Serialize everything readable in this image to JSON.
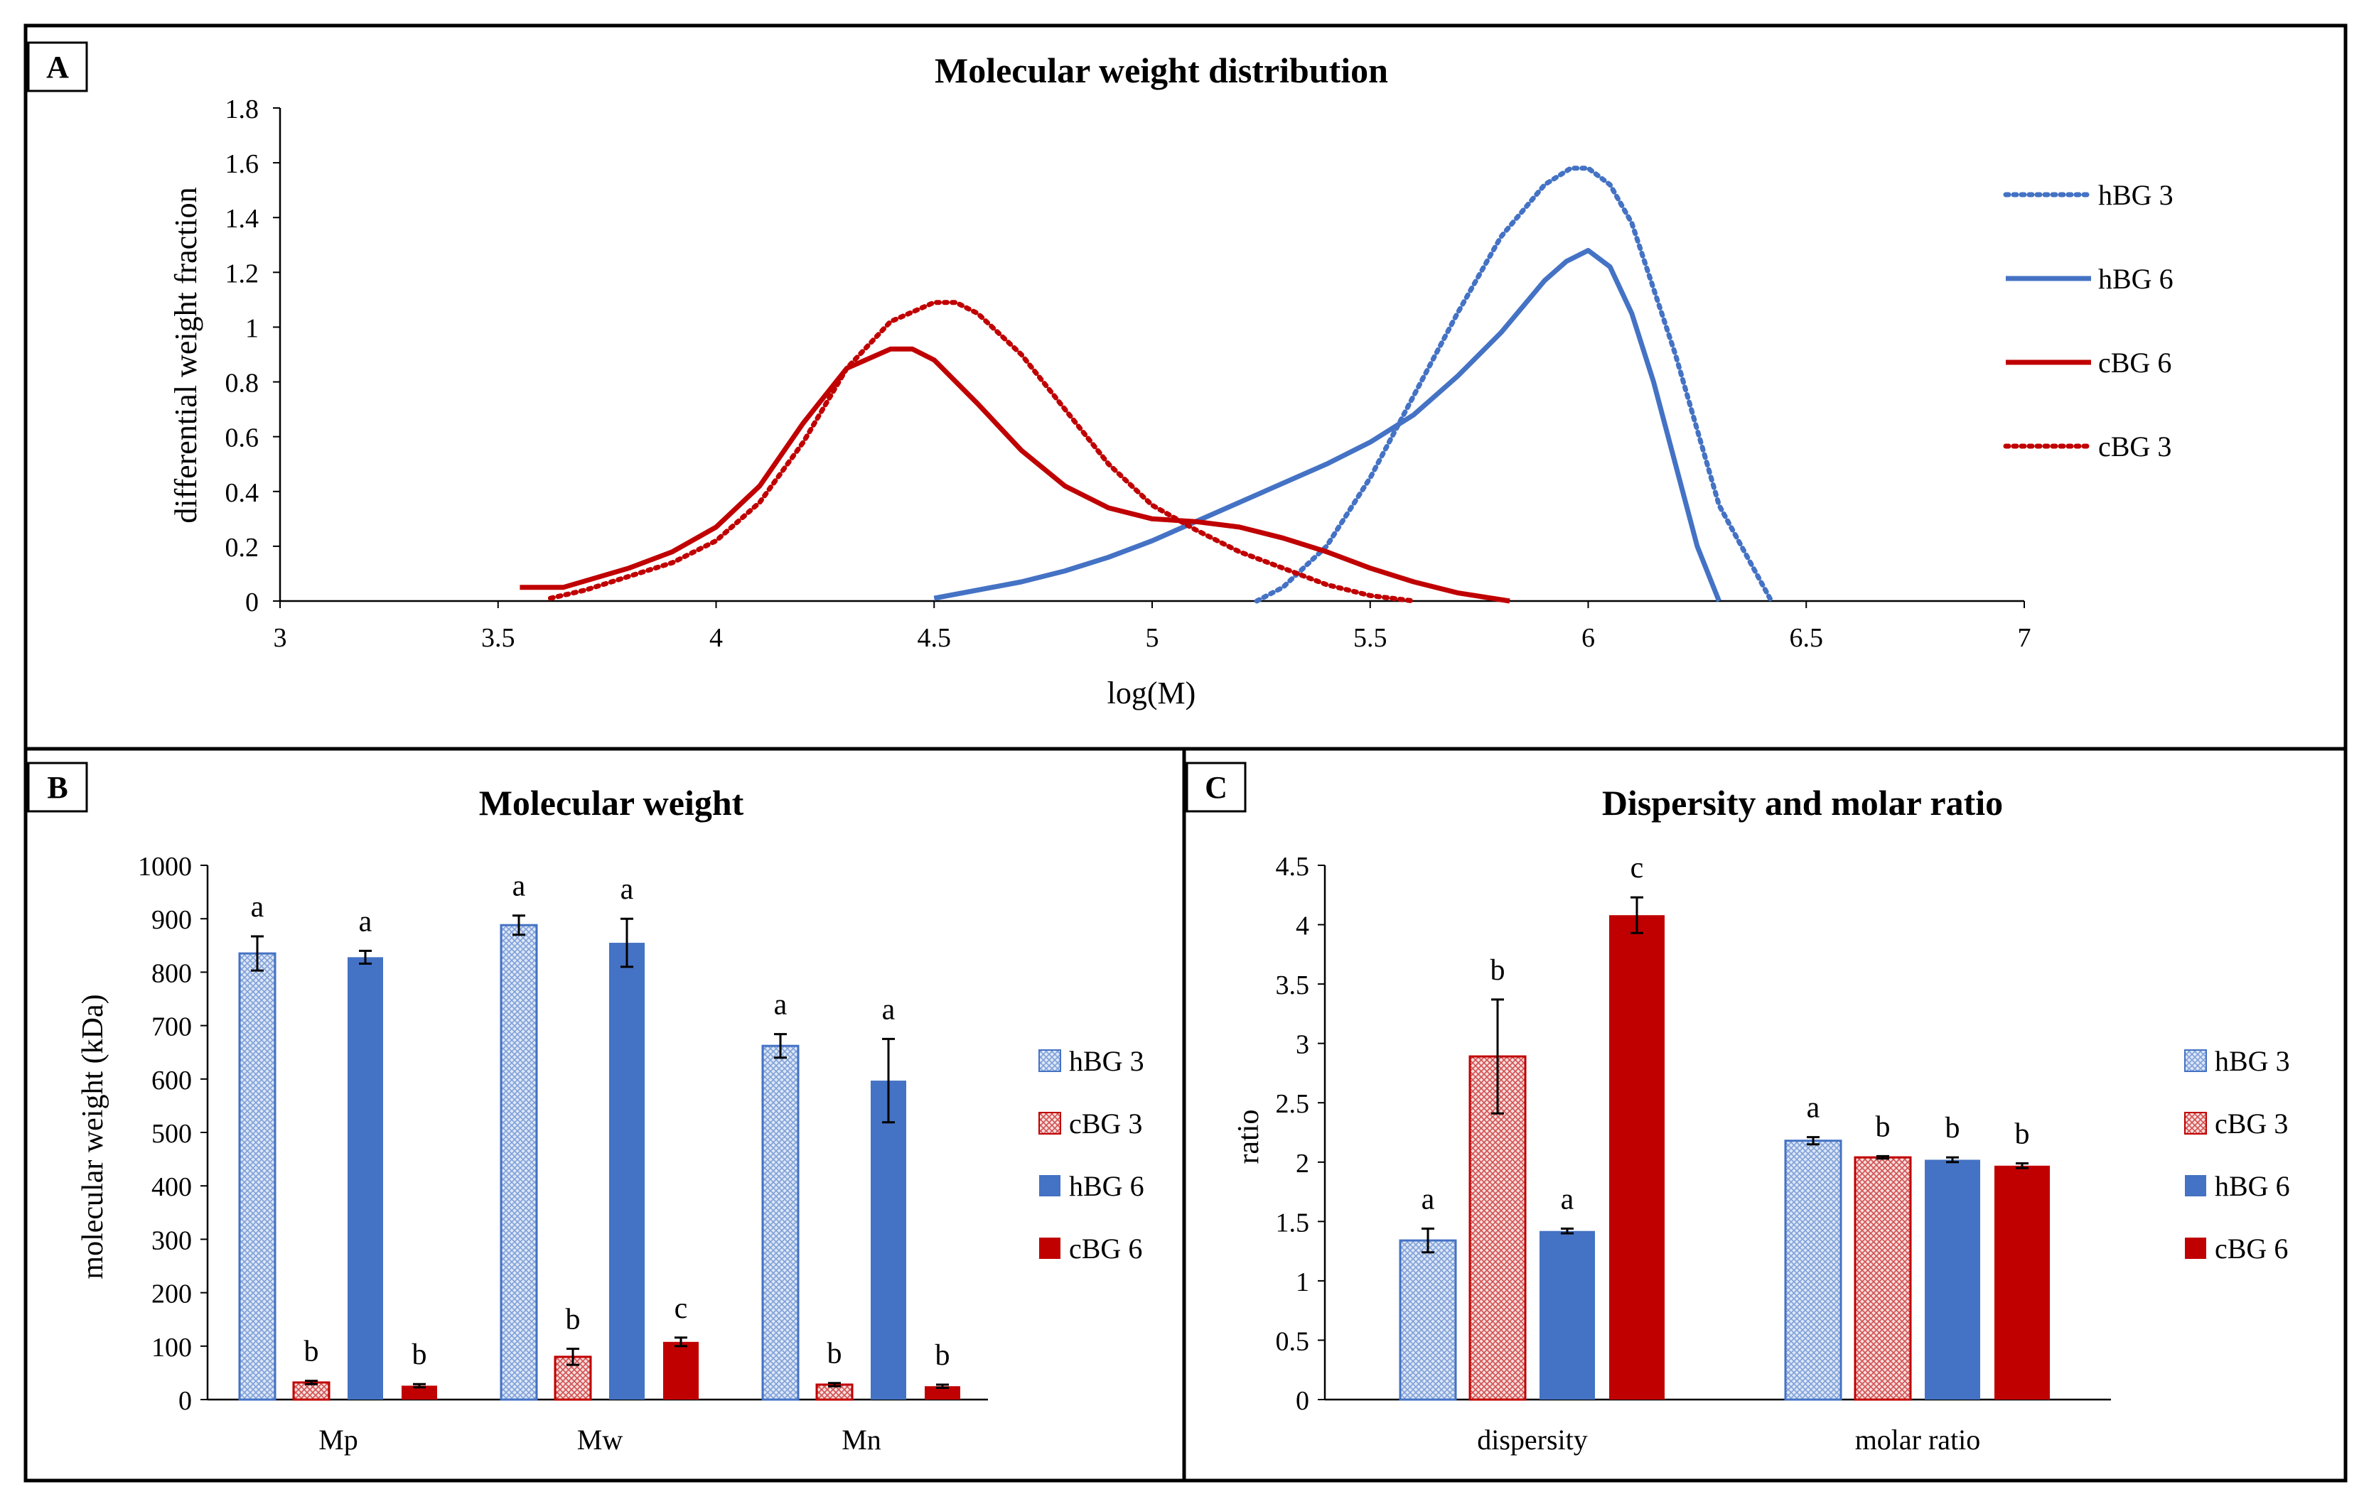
{
  "chart_data": [
    {
      "panel": "A",
      "type": "line",
      "title": "Molecular weight distribution",
      "xlabel": "log(M)",
      "ylabel": "differential weight fraction",
      "xlim": [
        3,
        7
      ],
      "ylim": [
        0,
        1.8
      ],
      "x_ticks": [
        "3",
        "3.5",
        "4",
        "4.5",
        "5",
        "5.5",
        "6",
        "6.5",
        "7"
      ],
      "y_ticks": [
        "0",
        "0.2",
        "0.4",
        "0.6",
        "0.8",
        "1",
        "1.2",
        "1.4",
        "1.6",
        "1.8"
      ],
      "legend_position": "right",
      "series": [
        {
          "name": "hBG 3",
          "color": "#4472c4",
          "dash": "dotted",
          "x": [
            5.24,
            5.3,
            5.4,
            5.5,
            5.6,
            5.7,
            5.8,
            5.9,
            5.96,
            6.0,
            6.05,
            6.1,
            6.2,
            6.3,
            6.42
          ],
          "y": [
            0.0,
            0.05,
            0.2,
            0.45,
            0.75,
            1.05,
            1.33,
            1.52,
            1.58,
            1.58,
            1.52,
            1.38,
            0.9,
            0.35,
            0.0
          ]
        },
        {
          "name": "hBG 6",
          "color": "#4472c4",
          "dash": "solid",
          "x": [
            4.5,
            4.6,
            4.7,
            4.8,
            4.9,
            5.0,
            5.1,
            5.2,
            5.3,
            5.4,
            5.5,
            5.6,
            5.7,
            5.8,
            5.9,
            5.95,
            6.0,
            6.05,
            6.1,
            6.15,
            6.2,
            6.25,
            6.3
          ],
          "y": [
            0.01,
            0.04,
            0.07,
            0.11,
            0.16,
            0.22,
            0.29,
            0.36,
            0.43,
            0.5,
            0.58,
            0.68,
            0.82,
            0.98,
            1.17,
            1.24,
            1.28,
            1.22,
            1.05,
            0.8,
            0.5,
            0.2,
            0.0
          ]
        },
        {
          "name": "cBG 6",
          "color": "#c00000",
          "dash": "solid",
          "x": [
            3.55,
            3.65,
            3.8,
            3.9,
            4.0,
            4.1,
            4.2,
            4.3,
            4.4,
            4.45,
            4.5,
            4.6,
            4.7,
            4.8,
            4.9,
            5.0,
            5.1,
            5.2,
            5.3,
            5.4,
            5.5,
            5.6,
            5.7,
            5.82
          ],
          "y": [
            0.05,
            0.05,
            0.12,
            0.18,
            0.27,
            0.42,
            0.65,
            0.85,
            0.92,
            0.92,
            0.88,
            0.72,
            0.55,
            0.42,
            0.34,
            0.3,
            0.29,
            0.27,
            0.23,
            0.18,
            0.12,
            0.07,
            0.03,
            0.0
          ]
        },
        {
          "name": "cBG 3",
          "color": "#c00000",
          "dash": "dotted",
          "x": [
            3.62,
            3.7,
            3.8,
            3.9,
            4.0,
            4.1,
            4.2,
            4.3,
            4.4,
            4.5,
            4.55,
            4.6,
            4.7,
            4.8,
            4.9,
            5.0,
            5.1,
            5.2,
            5.3,
            5.4,
            5.5,
            5.6
          ],
          "y": [
            0.01,
            0.04,
            0.09,
            0.14,
            0.22,
            0.36,
            0.58,
            0.85,
            1.02,
            1.09,
            1.09,
            1.05,
            0.9,
            0.7,
            0.5,
            0.35,
            0.26,
            0.18,
            0.12,
            0.06,
            0.02,
            0.0
          ]
        }
      ]
    },
    {
      "panel": "B",
      "type": "bar",
      "title": "Molecular weight",
      "xlabel": "",
      "ylabel": "molecular weight (kDa)",
      "ylim": [
        0,
        1000
      ],
      "y_ticks": [
        "0",
        "100",
        "200",
        "300",
        "400",
        "500",
        "600",
        "700",
        "800",
        "900",
        "1000"
      ],
      "categories": [
        "Mp",
        "Mw",
        "Mn"
      ],
      "legend_position": "right",
      "series": [
        {
          "name": "hBG 3",
          "color": "#4472c4",
          "pattern": "hatch",
          "values": [
            835,
            888,
            662
          ],
          "errors": [
            32,
            18,
            22
          ],
          "letters": [
            "a",
            "a",
            "a"
          ]
        },
        {
          "name": "cBG 3",
          "color": "#c00000",
          "pattern": "hatch",
          "values": [
            32,
            80,
            28
          ],
          "errors": [
            3,
            15,
            3
          ],
          "letters": [
            "b",
            "b",
            "b"
          ]
        },
        {
          "name": "hBG 6",
          "color": "#4472c4",
          "pattern": "solid",
          "values": [
            828,
            855,
            597
          ],
          "errors": [
            12,
            45,
            78
          ],
          "letters": [
            "a",
            "a",
            "a"
          ]
        },
        {
          "name": "cBG 6",
          "color": "#c00000",
          "pattern": "solid",
          "values": [
            26,
            108,
            25
          ],
          "errors": [
            3,
            8,
            3
          ],
          "letters": [
            "b",
            "c",
            "b"
          ]
        }
      ]
    },
    {
      "panel": "C",
      "type": "bar",
      "title": "Dispersity and molar ratio",
      "xlabel": "",
      "ylabel": "ratio",
      "ylim": [
        0,
        4.5
      ],
      "y_ticks": [
        "0",
        "0.5",
        "1",
        "1.5",
        "2",
        "2.5",
        "3",
        "3.5",
        "4",
        "4.5"
      ],
      "categories": [
        "dispersity",
        "molar ratio"
      ],
      "legend_position": "right",
      "series": [
        {
          "name": "hBG 3",
          "color": "#4472c4",
          "pattern": "hatch",
          "values": [
            1.34,
            2.18
          ],
          "errors": [
            0.1,
            0.03
          ],
          "letters": [
            "a",
            "a"
          ]
        },
        {
          "name": "cBG 3",
          "color": "#c00000",
          "pattern": "hatch",
          "values": [
            2.89,
            2.04
          ],
          "errors": [
            0.48,
            0.01
          ],
          "letters": [
            "b",
            "b"
          ]
        },
        {
          "name": "hBG 6",
          "color": "#4472c4",
          "pattern": "solid",
          "values": [
            1.42,
            2.02
          ],
          "errors": [
            0.02,
            0.02
          ],
          "letters": [
            "a",
            "b"
          ]
        },
        {
          "name": "cBG 6",
          "color": "#c00000",
          "pattern": "solid",
          "values": [
            4.08,
            1.97
          ],
          "errors": [
            0.15,
            0.02
          ],
          "letters": [
            "c",
            "b"
          ]
        }
      ]
    }
  ]
}
